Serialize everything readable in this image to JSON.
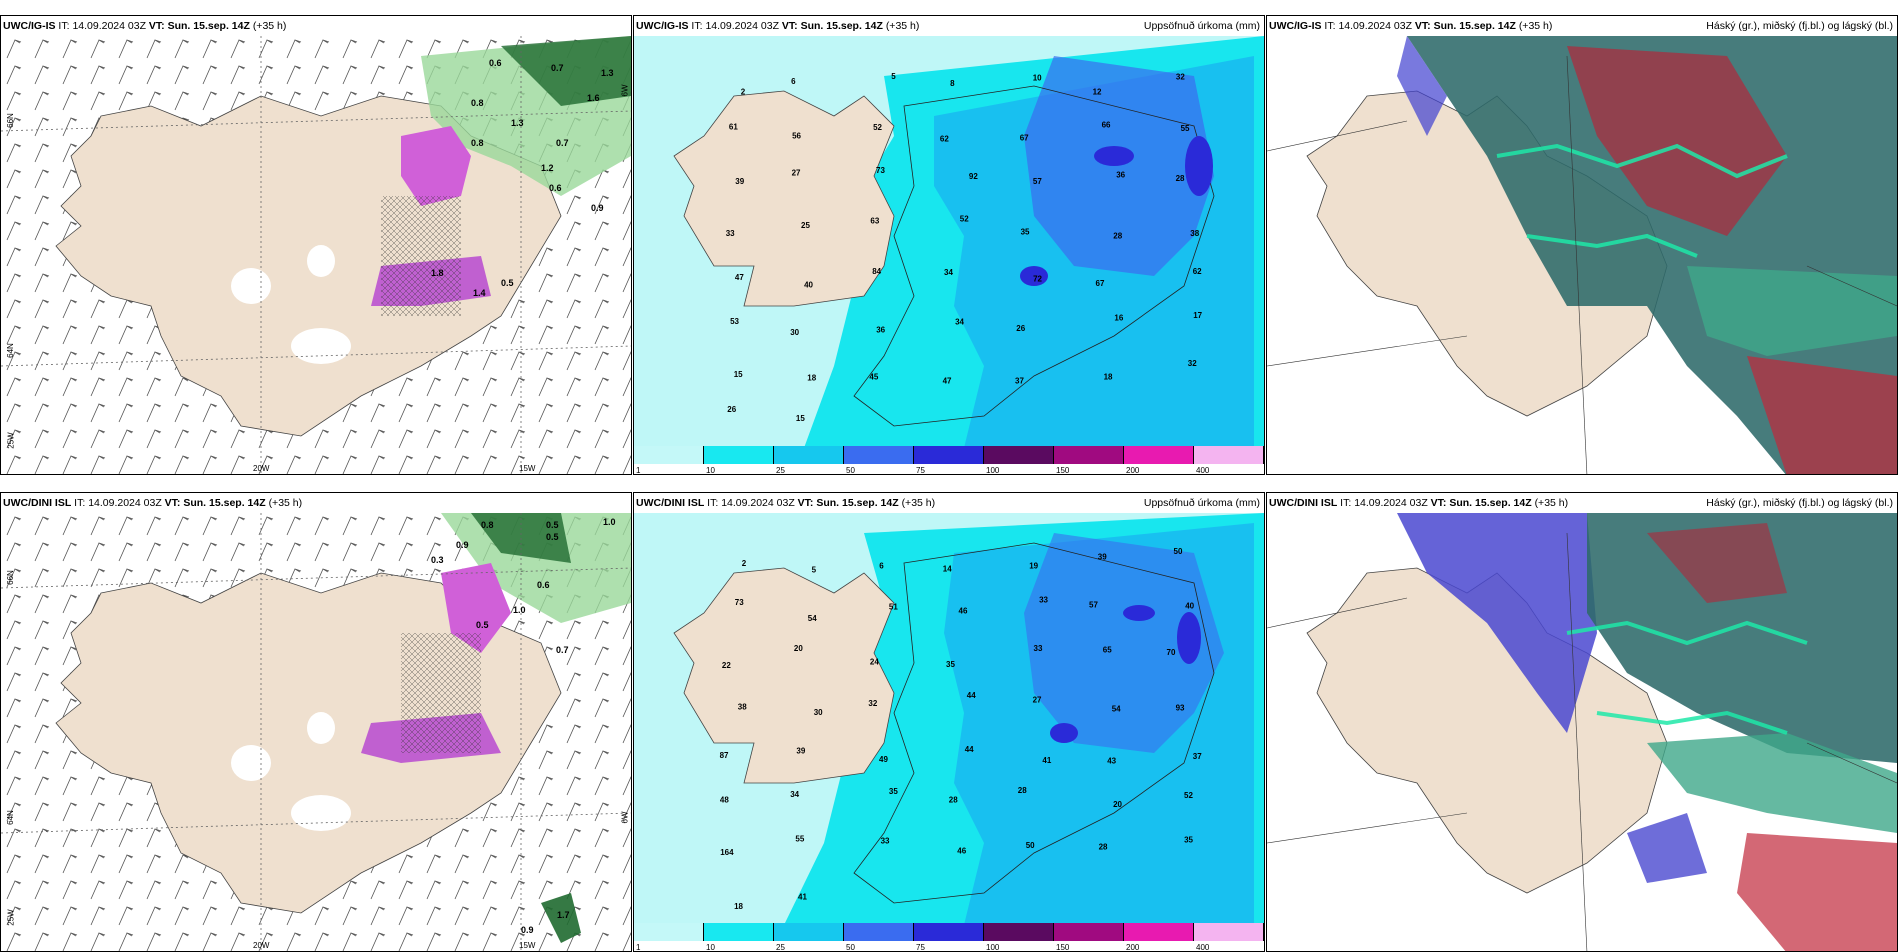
{
  "rows": [
    {
      "model": "UWC/IG-IS",
      "it_label": "IT:",
      "it_value": "14.09.2024 03Z",
      "vt_label": "VT:",
      "vt_value": "Sun. 15.sep. 14Z",
      "lead": "(+35 h)"
    },
    {
      "model": "UWC/DINI ISL",
      "it_label": "IT:",
      "it_value": "14.09.2024 03Z",
      "vt_label": "VT:",
      "vt_value": "Sun. 15.sep. 14Z",
      "lead": "(+35 h)"
    }
  ],
  "titles": {
    "precip": "Uppsöfnuð úrkoma (mm)",
    "cloud": "Háský (gr.), miðský (fj.bl.) og lágský (bl.)"
  },
  "axis_labels": {
    "lat66": "66N",
    "lat64": "64N",
    "lon20": "20W",
    "lon15": "15W",
    "lon25": "25W",
    "lon6": "6W"
  },
  "colorbar": {
    "ticks": [
      "1",
      "10",
      "25",
      "50",
      "75",
      "100",
      "150",
      "200",
      "400"
    ],
    "colors": [
      "#c4f8f8",
      "#18e8f0",
      "#16c8ee",
      "#3a6cf0",
      "#2a2ad8",
      "#5a0a60",
      "#a00a80",
      "#e81ab0",
      "#f4b4f0"
    ]
  },
  "precip_numbers_top": [
    "2",
    "6",
    "5",
    "8",
    "10",
    "12",
    "32",
    "61",
    "56",
    "52",
    "62",
    "67",
    "66",
    "55",
    "39",
    "27",
    "73",
    "92",
    "57",
    "36",
    "28",
    "33",
    "25",
    "63",
    "52",
    "35",
    "28",
    "38",
    "47",
    "40",
    "84",
    "34",
    "72",
    "67",
    "62",
    "53",
    "30",
    "36",
    "34",
    "26",
    "16",
    "17",
    "15",
    "18",
    "45",
    "47",
    "37",
    "18",
    "32",
    "26",
    "15"
  ],
  "precip_numbers_bottom": [
    "2",
    "5",
    "6",
    "14",
    "19",
    "39",
    "50",
    "73",
    "54",
    "51",
    "46",
    "33",
    "57",
    "40",
    "22",
    "20",
    "24",
    "35",
    "33",
    "65",
    "70",
    "38",
    "30",
    "32",
    "44",
    "27",
    "54",
    "93",
    "87",
    "39",
    "49",
    "44",
    "41",
    "43",
    "37",
    "48",
    "34",
    "35",
    "28",
    "28",
    "20",
    "52",
    "164",
    "55",
    "33",
    "46",
    "50",
    "28",
    "35",
    "18",
    "41"
  ],
  "wind_values_top": [
    "0.6",
    "0.7",
    "1.3",
    "1.6",
    "0.8",
    "1.3",
    "0.7",
    "1.2",
    "0.6",
    "0.8",
    "1.8",
    "0.5",
    "1.4",
    "0.9"
  ],
  "wind_values_bottom": [
    "0.8",
    "0.5",
    "0.5",
    "1.0",
    "0.9",
    "0.6",
    "0.7",
    "1.0",
    "0.9",
    "0.3",
    "0.5",
    "1.7"
  ],
  "colors": {
    "land": "#efe0cf",
    "sea_light": "#bff7f7",
    "cyan": "#18e6ee",
    "mid": "#18c0f0",
    "blue": "#3a6cf0",
    "dark_blue": "#3030d0",
    "magenta": "#d060d8",
    "green_dark": "#1f6a30",
    "green_light": "#9ad89a"
  }
}
